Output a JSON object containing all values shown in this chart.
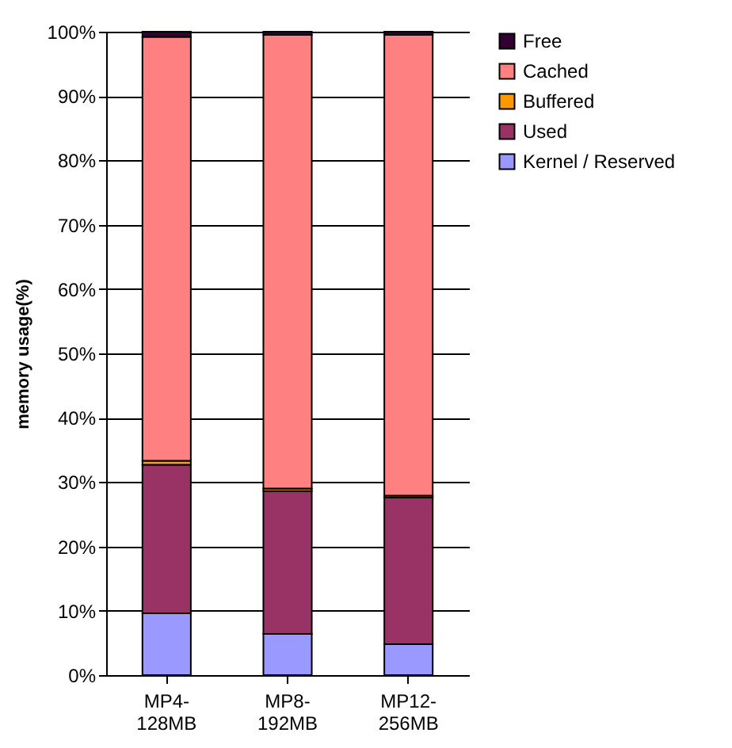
{
  "chart_data": {
    "type": "bar",
    "stacked": true,
    "ylabel": "memory usage(%)",
    "categories": [
      "MP4-128MB",
      "MP8-192MB",
      "MP12-256MB"
    ],
    "series": [
      {
        "name": "Kernel / Reserved",
        "color": "#9999ff",
        "values": [
          9.6,
          6.4,
          4.8
        ]
      },
      {
        "name": "Used",
        "color": "#993366",
        "values": [
          23.1,
          22.2,
          22.8
        ]
      },
      {
        "name": "Buffered",
        "color": "#ff9900",
        "values": [
          0.6,
          0.4,
          0.3
        ]
      },
      {
        "name": "Cached",
        "color": "#ff8080",
        "values": [
          65.9,
          70.5,
          71.6
        ]
      },
      {
        "name": "Free",
        "color": "#330033",
        "values": [
          0.8,
          0.5,
          0.5
        ]
      }
    ],
    "ylim": [
      0,
      100
    ],
    "yticks": [
      {
        "value": 0,
        "label": "0%"
      },
      {
        "value": 10,
        "label": "10%"
      },
      {
        "value": 20,
        "label": "20%"
      },
      {
        "value": 30,
        "label": "30%"
      },
      {
        "value": 40,
        "label": "40%"
      },
      {
        "value": 50,
        "label": "50%"
      },
      {
        "value": 60,
        "label": "60%"
      },
      {
        "value": 70,
        "label": "70%"
      },
      {
        "value": 80,
        "label": "80%"
      },
      {
        "value": 90,
        "label": "90%"
      },
      {
        "value": 100,
        "label": "100%"
      }
    ],
    "grid": "y",
    "legend": "right"
  }
}
